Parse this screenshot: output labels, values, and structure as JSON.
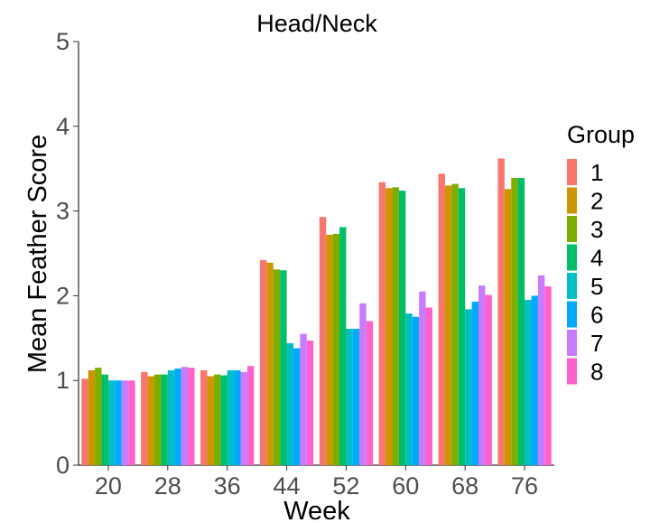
{
  "chart_data": {
    "type": "bar",
    "title": "Head/Neck",
    "xlabel": "Week",
    "ylabel": "Mean Feather Score",
    "categories": [
      "20",
      "28",
      "36",
      "44",
      "52",
      "60",
      "68",
      "76"
    ],
    "yticks": [
      "0",
      "1",
      "2",
      "3",
      "4",
      "5"
    ],
    "ylim": [
      0,
      5
    ],
    "grid": false,
    "legend": {
      "title": "Group",
      "placement": "right"
    },
    "series": [
      {
        "name": "1",
        "color": "#F8766D",
        "values": [
          1.02,
          1.1,
          1.12,
          2.42,
          2.93,
          3.34,
          3.44,
          3.62
        ]
      },
      {
        "name": "2",
        "color": "#CD9600",
        "values": [
          1.12,
          1.05,
          1.05,
          2.39,
          2.72,
          3.27,
          3.3,
          3.26
        ]
      },
      {
        "name": "3",
        "color": "#7CAE00",
        "values": [
          1.15,
          1.07,
          1.07,
          2.31,
          2.73,
          3.28,
          3.32,
          3.39
        ]
      },
      {
        "name": "4",
        "color": "#00BE67",
        "values": [
          1.07,
          1.07,
          1.06,
          2.3,
          2.81,
          3.24,
          3.27,
          3.39
        ]
      },
      {
        "name": "5",
        "color": "#00BFC4",
        "values": [
          1.0,
          1.12,
          1.12,
          1.44,
          1.61,
          1.79,
          1.84,
          1.95
        ]
      },
      {
        "name": "6",
        "color": "#00A9FF",
        "values": [
          1.0,
          1.14,
          1.12,
          1.38,
          1.61,
          1.75,
          1.93,
          2.0
        ]
      },
      {
        "name": "7",
        "color": "#C77CFF",
        "values": [
          1.0,
          1.16,
          1.1,
          1.55,
          1.91,
          2.05,
          2.12,
          2.24
        ]
      },
      {
        "name": "8",
        "color": "#FF61CC",
        "values": [
          1.0,
          1.15,
          1.17,
          1.47,
          1.7,
          1.86,
          2.01,
          2.11
        ]
      }
    ]
  }
}
